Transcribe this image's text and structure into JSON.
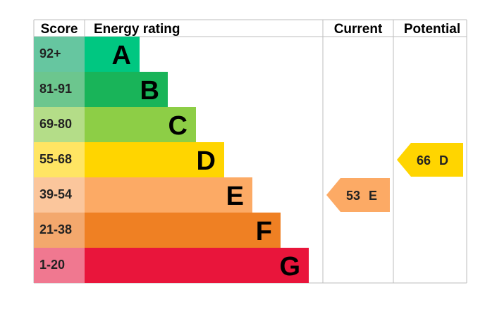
{
  "chart_data": {
    "type": "bar",
    "title": "",
    "headers": {
      "score": "Score",
      "rating": "Energy rating",
      "current": "Current",
      "potential": "Potential"
    },
    "bands": [
      {
        "score": "92+",
        "letter": "A",
        "color": "#00c781",
        "score_bg": "#66c6a0"
      },
      {
        "score": "81-91",
        "letter": "B",
        "color": "#19b459",
        "score_bg": "#6cc68e"
      },
      {
        "score": "69-80",
        "letter": "C",
        "color": "#8dce46",
        "score_bg": "#b4dd88"
      },
      {
        "score": "55-68",
        "letter": "D",
        "color": "#ffd500",
        "score_bg": "#ffe563"
      },
      {
        "score": "39-54",
        "letter": "E",
        "color": "#fcaa65",
        "score_bg": "#fbc69c"
      },
      {
        "score": "21-38",
        "letter": "F",
        "color": "#ef8023",
        "score_bg": "#f3a86d"
      },
      {
        "score": "1-20",
        "letter": "G",
        "color": "#e9153b",
        "score_bg": "#f07890"
      }
    ],
    "current": {
      "value": 53,
      "band": "E",
      "label_value": "53",
      "label_band": "E",
      "color": "#fcaa65"
    },
    "potential": {
      "value": 66,
      "band": "D",
      "label_value": "66",
      "label_band": "D",
      "color": "#ffd500"
    }
  }
}
